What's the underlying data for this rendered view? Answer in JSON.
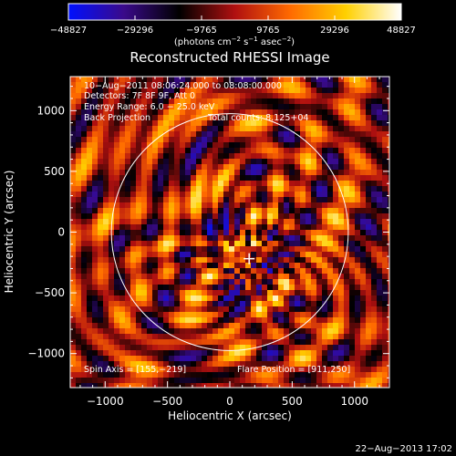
{
  "chart_data": {
    "type": "heatmap",
    "title": "Reconstructed RHESSI Image",
    "xlabel": "Heliocentric X (arcsec)",
    "ylabel": "Heliocentric Y (arcsec)",
    "xlim": [
      -1280,
      1280
    ],
    "ylim": [
      -1280,
      1280
    ],
    "x_ticks": [
      -1000,
      -500,
      0,
      500,
      1000
    ],
    "x_tick_labels": [
      "−1000",
      "−500",
      "0",
      "500",
      "1000"
    ],
    "y_ticks": [
      1000,
      500,
      0,
      -500,
      -1000
    ],
    "y_tick_labels": [
      "1000",
      "500",
      "0",
      "−500",
      "−1000"
    ],
    "colorbar": {
      "min": -48827,
      "max": 48827,
      "ticks": [
        -48827,
        -29296,
        -9765,
        9765,
        29296,
        48827
      ],
      "tick_labels": [
        "−48827",
        "−29296",
        "−9765",
        "9765",
        "29296",
        "48827"
      ],
      "units_prefix": "(photons cm",
      "units_sup1": "−2",
      "units_mid1": " s",
      "units_sup2": "−1",
      "units_mid2": " asec",
      "units_sup3": "−2",
      "units_suffix": ")",
      "colors": [
        "#0010ff",
        "#3a0a8a",
        "#000000",
        "#b01010",
        "#ff6a00",
        "#ffd000",
        "#ffffff"
      ]
    },
    "annotations": {
      "line1": "10−Aug−2011 08:06:24.000 to 08:08:00.000",
      "line2": "Detectors: 7F 8F 9F, Att 0",
      "line3": "Energy Range: 6.0 − 25.0 keV",
      "line4": "Back Projection",
      "total_counts": "Total counts: 8.125+04",
      "spin_axis": "Spin Axis = [155,−219]",
      "flare_position": "Flare Position = [911,250]"
    },
    "solar_limb_radius": 950,
    "flare_marker": [
      155,
      -219
    ]
  },
  "footer": {
    "timestamp": "22−Aug−2013 17:02"
  }
}
